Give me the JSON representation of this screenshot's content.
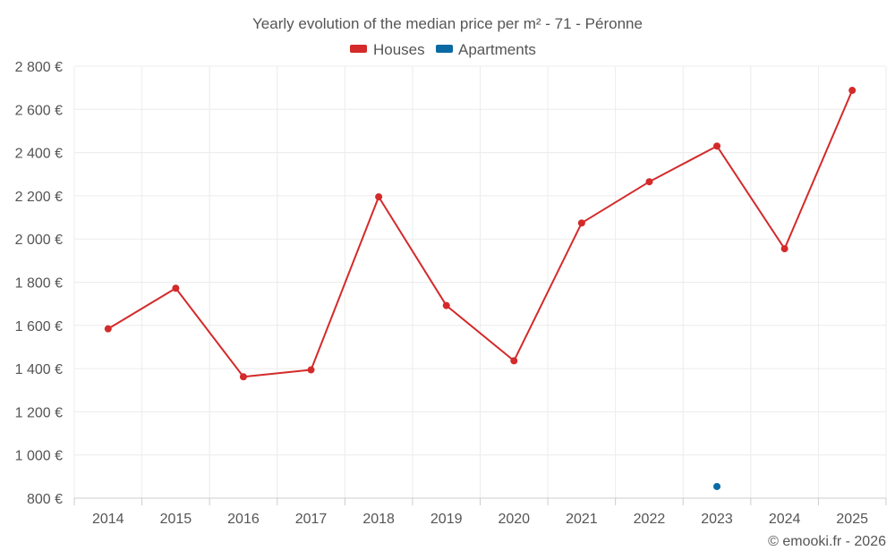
{
  "chart_data": {
    "type": "line",
    "title": "Yearly evolution of the median price per m² - 71 - Péronne",
    "categories": [
      "2014",
      "2015",
      "2016",
      "2017",
      "2018",
      "2019",
      "2020",
      "2021",
      "2022",
      "2023",
      "2024",
      "2025"
    ],
    "ylim": [
      800,
      2800
    ],
    "yticks": [
      800,
      1000,
      1200,
      1400,
      1600,
      1800,
      2000,
      2200,
      2400,
      2600,
      2800
    ],
    "ytick_labels": [
      "800 €",
      "1 000 €",
      "1 200 €",
      "1 400 €",
      "1 600 €",
      "1 800 €",
      "2 000 €",
      "2 200 €",
      "2 400 €",
      "2 600 €",
      "2 800 €"
    ],
    "legend_position": "top-center",
    "series": [
      {
        "name": "Houses",
        "color": "#d42a2a",
        "values": [
          1584,
          1772,
          1362,
          1394,
          2195,
          1692,
          1436,
          2074,
          2265,
          2430,
          1955,
          2688
        ]
      },
      {
        "name": "Apartments",
        "color": "#0b6aa3",
        "values": [
          null,
          null,
          null,
          null,
          null,
          null,
          null,
          null,
          null,
          854,
          null,
          null
        ]
      }
    ],
    "credit": "© emooki.fr - 2026"
  }
}
